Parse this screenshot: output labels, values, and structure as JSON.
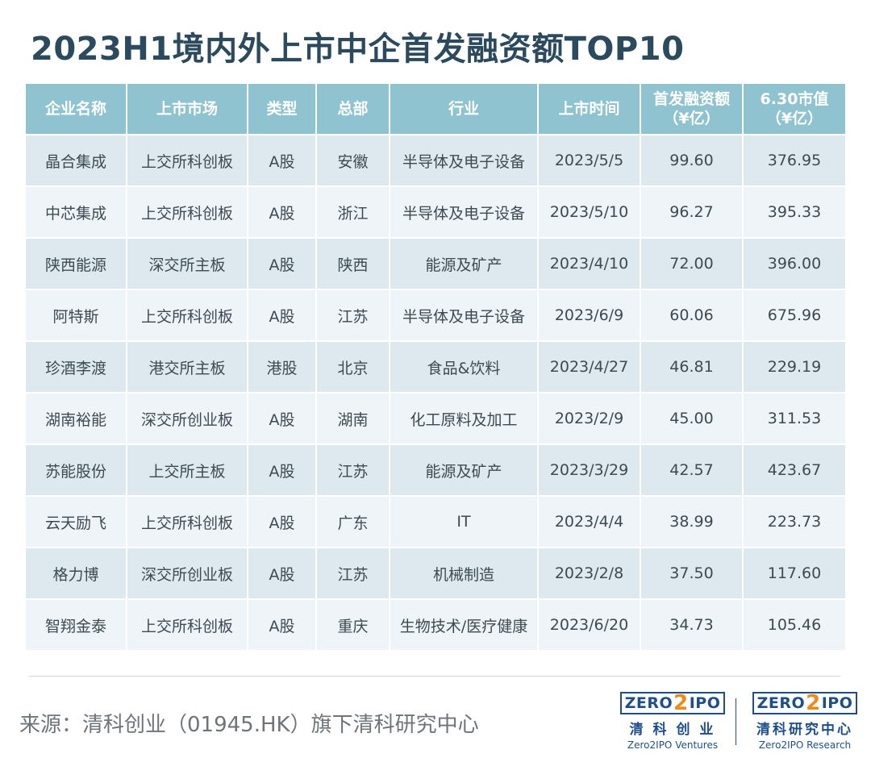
{
  "title": "2023H1境内外上市中企首发融资额TOP10",
  "chart_data": {
    "type": "table",
    "columns": [
      {
        "line1": "企业名称",
        "line2": ""
      },
      {
        "line1": "上市市场",
        "line2": ""
      },
      {
        "line1": "类型",
        "line2": ""
      },
      {
        "line1": "总部",
        "line2": ""
      },
      {
        "line1": "行业",
        "line2": ""
      },
      {
        "line1": "上市时间",
        "line2": ""
      },
      {
        "line1": "首发融资额",
        "line2": "（¥亿）"
      },
      {
        "line1": "6.30市值",
        "line2": "（¥亿）"
      }
    ],
    "rows": [
      [
        "晶合集成",
        "上交所科创板",
        "A股",
        "安徽",
        "半导体及电子设备",
        "2023/5/5",
        "99.60",
        "376.95"
      ],
      [
        "中芯集成",
        "上交所科创板",
        "A股",
        "浙江",
        "半导体及电子设备",
        "2023/5/10",
        "96.27",
        "395.33"
      ],
      [
        "陕西能源",
        "深交所主板",
        "A股",
        "陕西",
        "能源及矿产",
        "2023/4/10",
        "72.00",
        "396.00"
      ],
      [
        "阿特斯",
        "上交所科创板",
        "A股",
        "江苏",
        "半导体及电子设备",
        "2023/6/9",
        "60.06",
        "675.96"
      ],
      [
        "珍酒李渡",
        "港交所主板",
        "港股",
        "北京",
        "食品&饮料",
        "2023/4/27",
        "46.81",
        "229.19"
      ],
      [
        "湖南裕能",
        "深交所创业板",
        "A股",
        "湖南",
        "化工原料及加工",
        "2023/2/9",
        "45.00",
        "311.53"
      ],
      [
        "苏能股份",
        "上交所主板",
        "A股",
        "江苏",
        "能源及矿产",
        "2023/3/29",
        "42.57",
        "423.67"
      ],
      [
        "云天励飞",
        "上交所科创板",
        "A股",
        "广东",
        "IT",
        "2023/4/4",
        "38.99",
        "223.73"
      ],
      [
        "格力博",
        "深交所创业板",
        "A股",
        "江苏",
        "机械制造",
        "2023/2/8",
        "37.50",
        "117.60"
      ],
      [
        "智翔金泰",
        "上交所科创板",
        "A股",
        "重庆",
        "生物技术/医疗健康",
        "2023/6/20",
        "34.73",
        "105.46"
      ]
    ]
  },
  "footer": {
    "source": "来源：清科创业（01945.HK）旗下清科研究中心"
  },
  "logos": [
    {
      "mark_left": "ZERO",
      "mark_two": "2",
      "mark_right": "IPO",
      "name_cn": "清 科 创 业",
      "name_en": "Zero2IPO Ventures"
    },
    {
      "mark_left": "ZERO",
      "mark_two": "2",
      "mark_right": "IPO",
      "name_cn": "清科研究中心",
      "name_en": "Zero2IPO Research"
    }
  ],
  "colors": {
    "title": "#2c4a5e",
    "header_bg": "#8fc3cf",
    "row_odd_bg": "#dde9ee",
    "row_even_bg": "#eef4f7",
    "logo_blue": "#1f4f8a",
    "logo_orange": "#f08a1c"
  }
}
